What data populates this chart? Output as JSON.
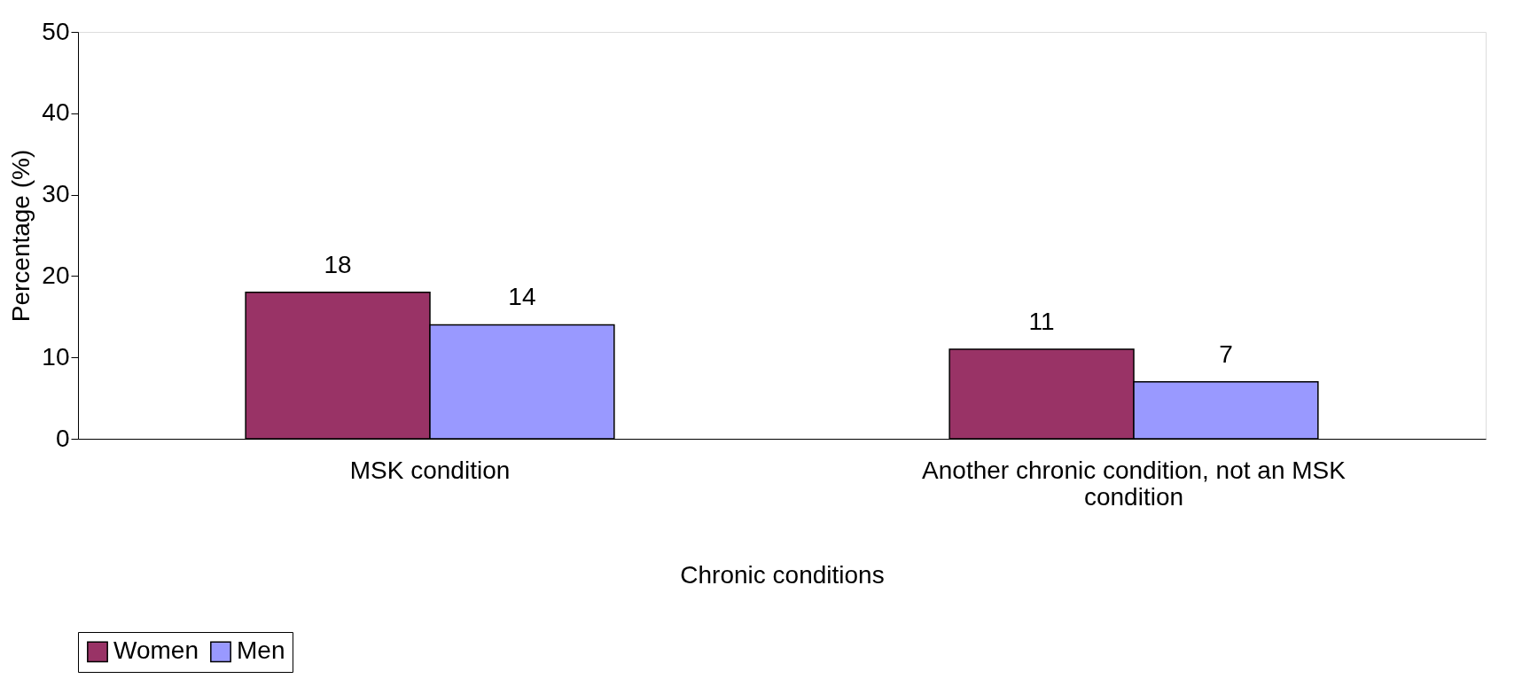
{
  "chart_data": {
    "type": "bar",
    "xlabel": "Chronic conditions",
    "ylabel": "Percentage (%)",
    "categories": [
      "MSK condition",
      "Another chronic condition, not an MSK condition"
    ],
    "series": [
      {
        "name": "Women",
        "color": "#993366",
        "values": [
          18,
          11
        ]
      },
      {
        "name": "Men",
        "color": "#9999ff",
        "values": [
          14,
          7
        ]
      }
    ],
    "ylim": [
      0,
      50
    ],
    "yticks": [
      0,
      10,
      20,
      30,
      40,
      50
    ],
    "data_labels": true,
    "grid": false,
    "legend": "bottom"
  }
}
